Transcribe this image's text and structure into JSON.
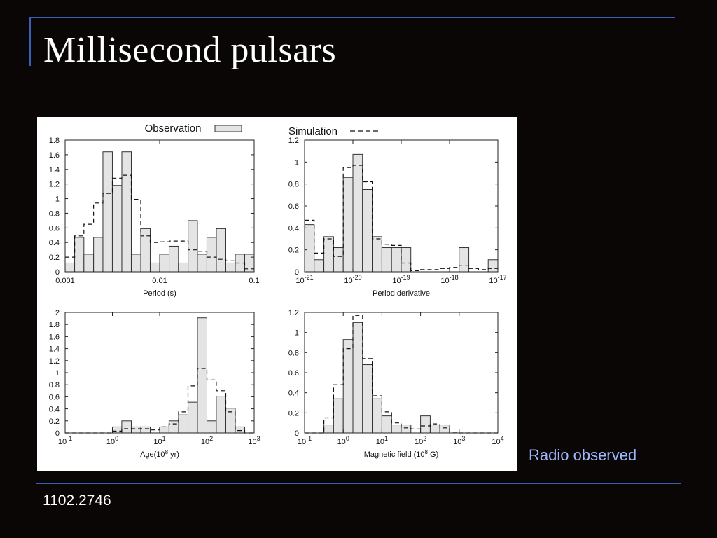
{
  "slide": {
    "title": "Millisecond pulsars",
    "side_note": "Radio observed",
    "footer": "1102.2746",
    "colors": {
      "background": "#0a0606",
      "rule": "#3a5fb8",
      "title": "#ffffff",
      "side_note": "#9fb7ff",
      "bar_fill": "#e4e4e4",
      "bar_stroke": "#333333"
    }
  },
  "legend": {
    "observation_label": "Observation",
    "simulation_label": "Simulation"
  },
  "chart_data": [
    {
      "type": "bar",
      "title": "",
      "xlabel": "Period (s)",
      "ylabel": "",
      "xscale": "log",
      "xlim": [
        0.001,
        0.1
      ],
      "ylim": [
        0,
        1.8
      ],
      "xticks": [
        "0.001",
        "0.01",
        "0.1"
      ],
      "yticks": [
        "0",
        "0.2",
        "0.4",
        "0.6",
        "0.8",
        "1",
        "1.2",
        "1.4",
        "1.6",
        "1.8"
      ],
      "bin_edges": [
        0.001,
        0.00126,
        0.00158,
        0.002,
        0.00251,
        0.00316,
        0.00398,
        0.00501,
        0.00631,
        0.00794,
        0.01,
        0.0126,
        0.0158,
        0.02,
        0.0251,
        0.0316,
        0.0398,
        0.0501,
        0.0631,
        0.0794,
        0.1
      ],
      "series": [
        {
          "name": "Observation",
          "style": "bars",
          "values": [
            0.12,
            0.47,
            0.24,
            0.47,
            1.64,
            1.18,
            1.64,
            0.24,
            0.59,
            0.12,
            0.24,
            0.35,
            0.12,
            0.7,
            0.24,
            0.47,
            0.59,
            0.12,
            0.24,
            0.24
          ]
        },
        {
          "name": "Simulation",
          "style": "dashed-step",
          "values": [
            0.2,
            0.49,
            0.65,
            0.94,
            1.07,
            1.28,
            1.32,
            0.99,
            0.49,
            0.4,
            0.41,
            0.42,
            0.42,
            0.3,
            0.28,
            0.2,
            0.17,
            0.15,
            0.12,
            0.04
          ]
        }
      ]
    },
    {
      "type": "bar",
      "title": "",
      "xlabel": "Period derivative",
      "ylabel": "",
      "xscale": "log",
      "xlim": [
        1e-21,
        1e-17
      ],
      "ylim": [
        0,
        1.2
      ],
      "xticks": [
        "10-21",
        "10-20",
        "10-19",
        "10-18",
        "10-17"
      ],
      "yticks": [
        "0",
        "0.2",
        "0.4",
        "0.6",
        "0.8",
        "1",
        "1.2"
      ],
      "bin_edges": [
        1e-21,
        1.58e-21,
        2.51e-21,
        3.98e-21,
        6.31e-21,
        1e-20,
        1.58e-20,
        2.51e-20,
        3.98e-20,
        6.31e-20,
        1e-19,
        1.58e-19,
        2.51e-19,
        3.98e-19,
        6.31e-19,
        1e-18,
        1.58e-18,
        2.51e-18,
        3.98e-18,
        6.31e-18,
        1e-17
      ],
      "series": [
        {
          "name": "Observation",
          "style": "bars",
          "values": [
            0.43,
            0.11,
            0.32,
            0.22,
            0.86,
            1.07,
            0.75,
            0.32,
            0.22,
            0.22,
            0.22,
            0,
            0,
            0,
            0,
            0,
            0.22,
            0,
            0,
            0.11
          ]
        },
        {
          "name": "Simulation",
          "style": "dashed-step",
          "values": [
            0.47,
            0.17,
            0.3,
            0.14,
            0.95,
            0.97,
            0.82,
            0.3,
            0.25,
            0.24,
            0.08,
            0.01,
            0.02,
            0.02,
            0.03,
            0.04,
            0.06,
            0.03,
            0.02,
            0.03
          ]
        }
      ]
    },
    {
      "type": "bar",
      "title": "",
      "xlabel": "Age(108 yr)",
      "ylabel": "",
      "xscale": "log",
      "xlim": [
        0.1,
        1000
      ],
      "ylim": [
        0,
        2
      ],
      "xticks": [
        "10-1",
        "100",
        "101",
        "102",
        "103"
      ],
      "yticks": [
        "0",
        "0.2",
        "0.4",
        "0.6",
        "0.8",
        "1",
        "1.2",
        "1.4",
        "1.6",
        "1.8",
        "2"
      ],
      "bin_edges": [
        0.1,
        0.158,
        0.251,
        0.398,
        0.631,
        1,
        1.58,
        2.51,
        3.98,
        6.31,
        10,
        15.8,
        25.1,
        39.8,
        63.1,
        100,
        158,
        251,
        398,
        631,
        1000
      ],
      "series": [
        {
          "name": "Observation",
          "style": "bars",
          "values": [
            0,
            0,
            0,
            0,
            0,
            0.1,
            0.2,
            0.1,
            0.1,
            0,
            0.1,
            0.2,
            0.3,
            0.51,
            1.91,
            0.2,
            0.61,
            0.41,
            0.1,
            0
          ]
        },
        {
          "name": "Simulation",
          "style": "dashed-step",
          "values": [
            0,
            0,
            0,
            0,
            0,
            0.03,
            0.07,
            0.07,
            0.07,
            0.05,
            0.1,
            0.15,
            0.35,
            0.78,
            1.07,
            0.88,
            0.7,
            0.35,
            0.04,
            0
          ]
        }
      ]
    },
    {
      "type": "bar",
      "title": "",
      "xlabel": "Magnetic field (108 G)",
      "ylabel": "",
      "xscale": "log",
      "xlim": [
        0.1,
        10000
      ],
      "ylim": [
        0,
        1.2
      ],
      "xticks": [
        "10-1",
        "100",
        "101",
        "102",
        "103",
        "104"
      ],
      "yticks": [
        "0",
        "0.2",
        "0.4",
        "0.6",
        "0.8",
        "1",
        "1.2"
      ],
      "bin_edges": [
        0.1,
        0.178,
        0.316,
        0.562,
        1,
        1.78,
        3.16,
        5.62,
        10,
        17.8,
        31.6,
        56.2,
        100,
        178,
        316,
        562,
        1000,
        1780,
        3160,
        5620,
        10000
      ],
      "series": [
        {
          "name": "Observation",
          "style": "bars",
          "values": [
            0,
            0,
            0.08,
            0.34,
            0.93,
            1.1,
            0.68,
            0.34,
            0.17,
            0.08,
            0.08,
            0,
            0.17,
            0.08,
            0.08,
            0,
            0,
            0,
            0,
            0
          ]
        },
        {
          "name": "Simulation",
          "style": "dashed-step",
          "values": [
            0,
            0,
            0.15,
            0.48,
            0.84,
            1.17,
            0.74,
            0.37,
            0.21,
            0.1,
            0.05,
            0.04,
            0.07,
            0.09,
            0.05,
            0.01,
            0,
            0,
            0,
            0
          ]
        }
      ]
    }
  ]
}
